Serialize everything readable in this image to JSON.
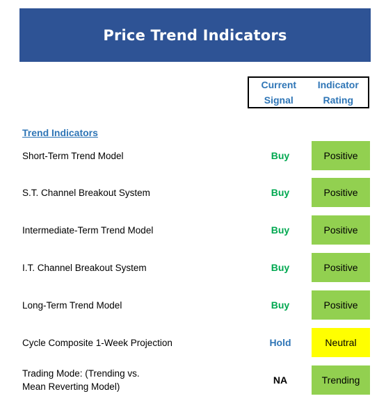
{
  "title": "Price Trend Indicators",
  "header": {
    "current_signal_line1": "Current",
    "current_signal_line2": "Signal",
    "indicator_rating_line1": "Indicator",
    "indicator_rating_line2": "Rating"
  },
  "section": {
    "label": "Trend Indicators"
  },
  "colors": {
    "banner": "#2e5395",
    "header_text": "#2e75b6",
    "buy": "#00a850",
    "hold": "#2e75b6",
    "na": "#000000",
    "positive": "#92d050",
    "neutral": "#ffff00",
    "trending": "#92d050"
  },
  "rows": [
    {
      "label_line1": "Short-Term Trend Model",
      "label_line2": "",
      "signal": "Buy",
      "signal_color": "#00a850",
      "rating": "Positive",
      "rating_color": "#92d050"
    },
    {
      "label_line1": "S.T. Channel Breakout System",
      "label_line2": "",
      "signal": "Buy",
      "signal_color": "#00a850",
      "rating": "Positive",
      "rating_color": "#92d050"
    },
    {
      "label_line1": "Intermediate-Term Trend Model",
      "label_line2": "",
      "signal": "Buy",
      "signal_color": "#00a850",
      "rating": "Positive",
      "rating_color": "#92d050"
    },
    {
      "label_line1": "I.T. Channel Breakout System",
      "label_line2": "",
      "signal": "Buy",
      "signal_color": "#00a850",
      "rating": "Positive",
      "rating_color": "#92d050"
    },
    {
      "label_line1": "Long-Term Trend Model",
      "label_line2": "",
      "signal": "Buy",
      "signal_color": "#00a850",
      "rating": "Positive",
      "rating_color": "#92d050"
    },
    {
      "label_line1": "Cycle Composite 1-Week Projection",
      "label_line2": "",
      "signal": "Hold",
      "signal_color": "#2e75b6",
      "rating": "Neutral",
      "rating_color": "#ffff00"
    },
    {
      "label_line1": "Trading Mode: (Trending vs.",
      "label_line2": "Mean Reverting Model)",
      "signal": "NA",
      "signal_color": "#000000",
      "rating": "Trending",
      "rating_color": "#92d050"
    }
  ]
}
